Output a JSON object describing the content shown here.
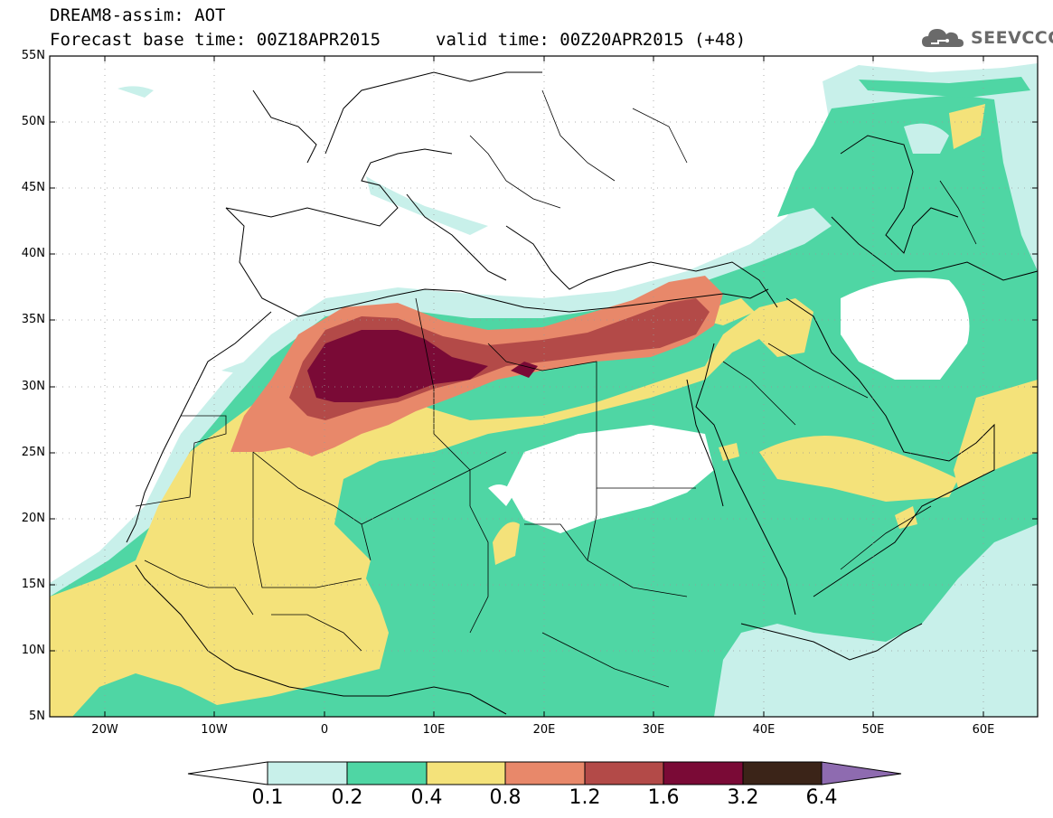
{
  "title": {
    "line1": "DREAM8-assim: AOT",
    "line2": "Forecast base time: 00Z18APR2015",
    "valid": "valid time: 00Z20APR2015 (+48)"
  },
  "logo": {
    "icon": "cloud-icon",
    "text": "SEEVCCC"
  },
  "map": {
    "extent": {
      "lon_min": -25,
      "lon_max": 65,
      "lat_min": 5,
      "lat_max": 55
    },
    "lat_labels": [
      "55N",
      "50N",
      "45N",
      "40N",
      "35N",
      "30N",
      "25N",
      "20N",
      "15N",
      "10N",
      "5N"
    ],
    "lon_labels": [
      "20W",
      "10W",
      "0",
      "10E",
      "20E",
      "30E",
      "40E",
      "50E",
      "60E"
    ]
  },
  "colorbar": {
    "labels": [
      "0.1",
      "0.2",
      "0.4",
      "0.8",
      "1.2",
      "1.6",
      "3.2",
      "6.4"
    ],
    "colors": [
      "#c8f0ea",
      "#4fd6a4",
      "#f4e27a",
      "#e8886a",
      "#b34a48",
      "#7a0a36",
      "#3b2418",
      "#8e6bb0"
    ]
  }
}
